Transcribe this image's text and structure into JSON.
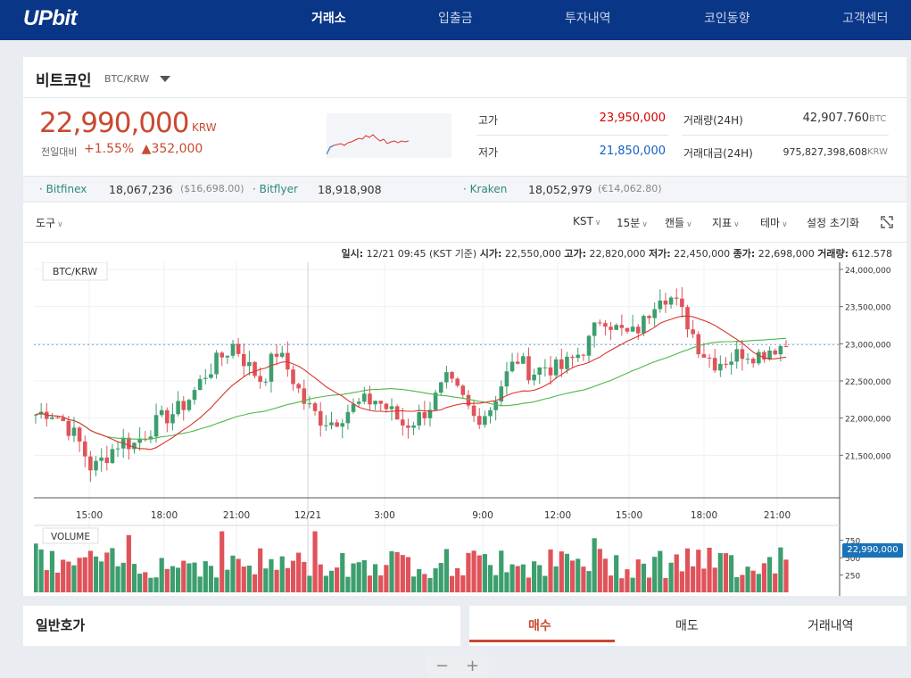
{
  "nav": {
    "logo": "UPbit",
    "items": [
      {
        "label": "거래소",
        "active": true
      },
      {
        "label": "입출금",
        "active": false
      },
      {
        "label": "투자내역",
        "active": false
      },
      {
        "label": "코인동향",
        "active": false
      },
      {
        "label": "고객센터",
        "active": false
      }
    ]
  },
  "coin": {
    "name": "비트코인",
    "pair": "BTC/KRW",
    "price": "22,990,000",
    "unit": "KRW",
    "change_label": "전일대비",
    "change_pct": "+1.55%",
    "change_amt": "▲352,000"
  },
  "stats": {
    "high_label": "고가",
    "high": "23,950,000",
    "low_label": "저가",
    "low": "21,850,000",
    "vol_label": "거래량(24H)",
    "vol": "42,907.760",
    "vol_unit": "BTC",
    "amt_label": "거래대금(24H)",
    "amt": "975,827,398,608",
    "amt_unit": "KRW"
  },
  "exchanges": [
    {
      "name": "Bitfinex",
      "price": "18,067,236",
      "usd": "($16,698.00)"
    },
    {
      "name": "Bitflyer",
      "price": "18,918,908",
      "usd": ""
    },
    {
      "name": "Kraken",
      "price": "18,052,979",
      "usd": "(€14,062.80)"
    }
  ],
  "toolbar": {
    "tools": "도구",
    "tz": "KST",
    "interval": "15분",
    "style": "캔들",
    "indicator": "지표",
    "theme": "테마",
    "reset": "설정 초기화"
  },
  "ohlc": {
    "time_label": "일시:",
    "time": "12/21 09:45 (KST 기준)",
    "open_label": "시가:",
    "open": "22,550,000",
    "high_label": "고가:",
    "high": "22,820,000",
    "low_label": "저가:",
    "low": "22,450,000",
    "close_label": "종가:",
    "close": "22,698,000",
    "vol_label": "거래량:",
    "vol": "612.578"
  },
  "chart_labels": {
    "pair_tag": "BTC/KRW",
    "volume_tag": "VOLUME",
    "current_price": "22,990,000"
  },
  "colors": {
    "up": "#3d9e6e",
    "down": "#e0535a",
    "ma_short": "#d9362c",
    "ma_long": "#4db94a"
  },
  "chart_data": {
    "type": "candlestick",
    "ylim": [
      21000000,
      24000000
    ],
    "y_ticks": [
      "24,000,000",
      "23,500,000",
      "23,000,000",
      "22,500,000",
      "22,000,000",
      "21,500,000"
    ],
    "x_ticks": [
      "15:00",
      "18:00",
      "21:00",
      "12/21",
      "3:00",
      "9:00",
      "12:00",
      "15:00",
      "18:00",
      "21:00"
    ],
    "volume_ticks": [
      "750",
      "500",
      "250"
    ],
    "close_path": [
      22050000,
      22100000,
      21950000,
      21700000,
      21300000,
      21500000,
      21700000,
      21650000,
      21850000,
      22000000,
      22100000,
      22300000,
      22600000,
      22800000,
      23000000,
      22700000,
      22500000,
      22900000,
      22600000,
      22200000,
      22000000,
      21950000,
      22100000,
      22200000,
      22250000,
      22100000,
      21900000,
      22000000,
      22200000,
      22500000,
      22300000,
      22000000,
      22100000,
      22500000,
      22800000,
      22600000,
      22700000,
      22650000,
      22800000,
      23000000,
      23400000,
      23200000,
      23100000,
      23300000,
      23700000,
      23600000,
      23300000,
      22900000,
      22750000,
      22800000,
      22900000,
      22850000,
      22950000,
      22990000
    ]
  }
}
